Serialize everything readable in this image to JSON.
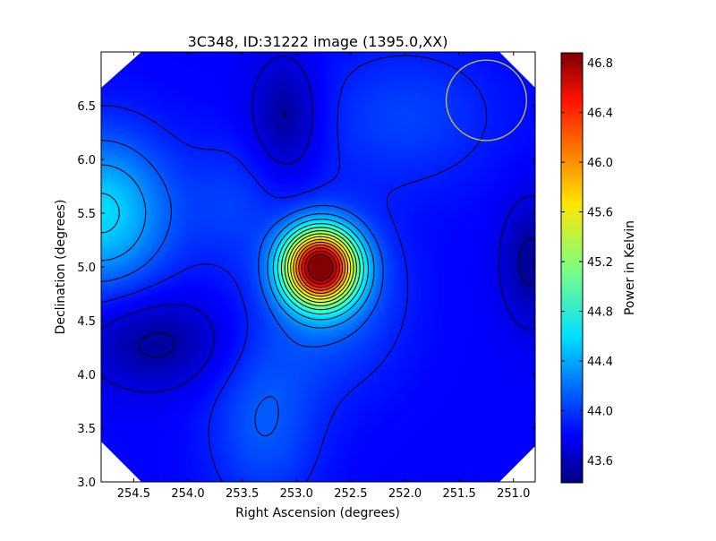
{
  "chart_data": {
    "type": "heatmap",
    "title": "3C348, ID:31222 image (1395.0,XX)",
    "xlabel": "Right Ascension (degrees)",
    "ylabel": "Declination (degrees)",
    "xlim": [
      254.8,
      250.8
    ],
    "ylim": [
      3.0,
      7.0
    ],
    "x_ticks": [
      254.5,
      254.0,
      253.5,
      253.0,
      252.5,
      252.0,
      251.5,
      251.0
    ],
    "x_tick_labels": [
      "254.5",
      "254.0",
      "253.5",
      "253.0",
      "252.5",
      "252.0",
      "251.5",
      "251.0"
    ],
    "y_ticks": [
      3.0,
      3.5,
      4.0,
      4.5,
      5.0,
      5.5,
      6.0,
      6.5
    ],
    "y_tick_labels": [
      "3.0",
      "3.5",
      "4.0",
      "4.5",
      "5.0",
      "5.5",
      "6.0",
      "6.5"
    ],
    "colorbar": {
      "label": "Power in Kelvin",
      "range": [
        43.42,
        46.88
      ],
      "ticks": [
        43.6,
        44.0,
        44.4,
        44.8,
        45.2,
        45.6,
        46.0,
        46.4,
        46.8
      ],
      "tick_labels": [
        "43.6",
        "44.0",
        "44.4",
        "44.8",
        "45.2",
        "45.6",
        "46.0",
        "46.4",
        "46.8"
      ],
      "colormap": "jet"
    },
    "features": {
      "source_peak": {
        "ra": 252.78,
        "dec": 5.0,
        "value": 46.8
      },
      "bright_region_left": {
        "ra": 254.8,
        "dec": 5.5,
        "value": 44.6
      },
      "faint_region_top": {
        "ra": 253.1,
        "dec": 6.4,
        "value": 43.5
      },
      "faint_region_left": {
        "ra": 254.3,
        "dec": 4.3,
        "value": 43.5
      },
      "faint_region_right": {
        "ra": 250.85,
        "dec": 5.05,
        "value": 43.5
      },
      "background_level": 43.85
    },
    "beam_circle": {
      "ra": 251.25,
      "dec": 6.55,
      "radius_deg": 0.37,
      "color": "#c8c838"
    },
    "contour_color": "#000000"
  }
}
